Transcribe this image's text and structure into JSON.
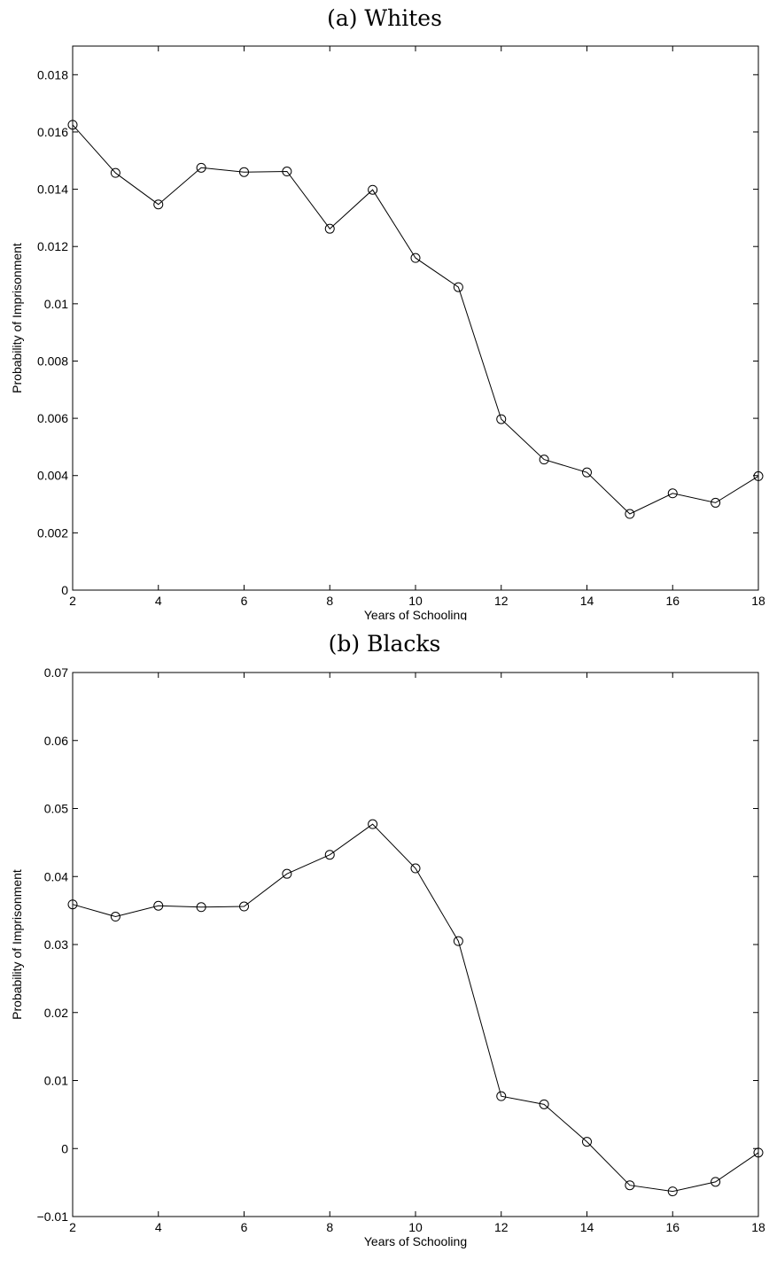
{
  "chart_data": [
    {
      "type": "line",
      "title": "(a) Whites",
      "xlabel": "Years of Schooling",
      "ylabel": "Probability of Imprisonment",
      "xlim": [
        2,
        18
      ],
      "ylim": [
        0,
        0.019
      ],
      "xticks": [
        2,
        4,
        6,
        8,
        10,
        12,
        14,
        16,
        18
      ],
      "xtick_labels": [
        "2",
        "4",
        "6",
        "8",
        "10",
        "12",
        "14",
        "16",
        "18"
      ],
      "yticks": [
        0,
        0.002,
        0.004,
        0.006,
        0.008,
        0.01,
        0.012,
        0.014,
        0.016,
        0.018
      ],
      "ytick_labels": [
        "0",
        "0.002",
        "0.004",
        "0.006",
        "0.008",
        "0.01",
        "0.012",
        "0.014",
        "0.016",
        "0.018"
      ],
      "grid": false,
      "marker": "circle",
      "series": [
        {
          "x": [
            2,
            3,
            4,
            5,
            6,
            7,
            8,
            9,
            10,
            11,
            12,
            13,
            14,
            15,
            16,
            17,
            18
          ],
          "values": [
            0.01625,
            0.01457,
            0.01347,
            0.01475,
            0.0146,
            0.01462,
            0.01262,
            0.01398,
            0.0116,
            0.01058,
            0.00597,
            0.00456,
            0.00411,
            0.00266,
            0.00338,
            0.00305,
            0.00398
          ]
        }
      ]
    },
    {
      "type": "line",
      "title": "(b) Blacks",
      "xlabel": "Years of Schooling",
      "ylabel": "Probability of Imprisonment",
      "xlim": [
        2,
        18
      ],
      "ylim": [
        -0.01,
        0.07
      ],
      "xticks": [
        2,
        4,
        6,
        8,
        10,
        12,
        14,
        16,
        18
      ],
      "xtick_labels": [
        "2",
        "4",
        "6",
        "8",
        "10",
        "12",
        "14",
        "16",
        "18"
      ],
      "yticks": [
        -0.01,
        0,
        0.01,
        0.02,
        0.03,
        0.04,
        0.05,
        0.06,
        0.07
      ],
      "ytick_labels": [
        "−0.01",
        "0",
        "0.01",
        "0.02",
        "0.03",
        "0.04",
        "0.05",
        "0.06",
        "0.07"
      ],
      "grid": false,
      "marker": "circle",
      "series": [
        {
          "x": [
            2,
            3,
            4,
            5,
            6,
            7,
            8,
            9,
            10,
            11,
            12,
            13,
            14,
            15,
            16,
            17,
            18
          ],
          "values": [
            0.0359,
            0.0341,
            0.0357,
            0.0355,
            0.0356,
            0.0404,
            0.0432,
            0.0477,
            0.0412,
            0.0305,
            0.0077,
            0.0065,
            0.001,
            -0.0054,
            -0.0063,
            -0.0049,
            -0.0006
          ]
        }
      ]
    }
  ]
}
